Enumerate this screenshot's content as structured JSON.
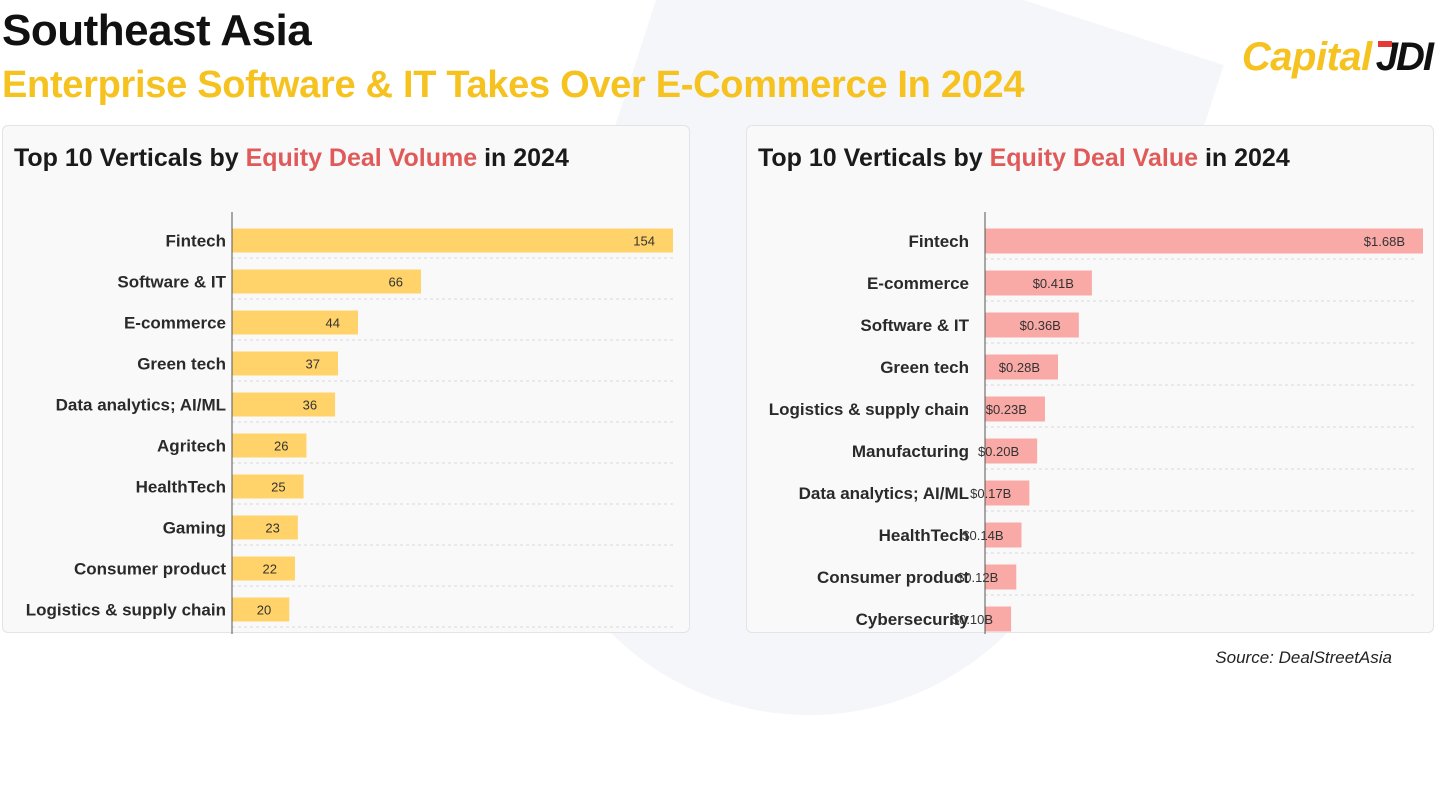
{
  "header": {
    "title": "Southeast Asia",
    "subtitle": "Enterprise Software & IT Takes Over E-Commerce In 2024",
    "logo_text": "Capital",
    "logo_mark": "JDI"
  },
  "source": "Source: DealStreetAsia",
  "colors": {
    "accent_yellow": "#f5c21f",
    "bar_yellow": "#ffd36a",
    "bar_pink": "#f9aaa6",
    "highlight_red": "#e05a5a"
  },
  "chart_data": [
    {
      "type": "bar",
      "orientation": "horizontal",
      "title_parts": [
        "Top 10 Verticals by ",
        "Equity Deal Volume",
        " in 2024"
      ],
      "categories": [
        "Fintech",
        "Software & IT",
        "E-commerce",
        "Green tech",
        "Data analytics; AI/ML",
        "Agritech",
        "HealthTech",
        "Gaming",
        "Consumer product",
        "Logistics & supply chain"
      ],
      "values": [
        154,
        66,
        44,
        37,
        36,
        26,
        25,
        23,
        22,
        20
      ],
      "value_labels": [
        "154",
        "66",
        "44",
        "37",
        "36",
        "26",
        "25",
        "23",
        "22",
        "20"
      ],
      "xlim": [
        0,
        154
      ],
      "grid": "horizontal dashed",
      "color": "#ffd36a"
    },
    {
      "type": "bar",
      "orientation": "horizontal",
      "title_parts": [
        "Top 10 Verticals by ",
        "Equity Deal Value",
        " in 2024"
      ],
      "categories": [
        "Fintech",
        "E-commerce",
        "Software & IT",
        "Green tech",
        "Logistics & supply chain",
        "Manufacturing",
        "Data analytics; AI/ML",
        "HealthTech",
        "Consumer product",
        "Cybersecurity"
      ],
      "values": [
        1.68,
        0.41,
        0.36,
        0.28,
        0.23,
        0.2,
        0.17,
        0.14,
        0.12,
        0.1
      ],
      "value_labels": [
        "$1.68B",
        "$0.41B",
        "$0.36B",
        "$0.28B",
        "$0.23B",
        "$0.20B",
        "$0.17B",
        "$0.14B",
        "$0.12B",
        "$0.10B"
      ],
      "units": "USD billions",
      "xlim": [
        0,
        1.68
      ],
      "grid": "horizontal dashed",
      "color": "#f9aaa6"
    }
  ]
}
